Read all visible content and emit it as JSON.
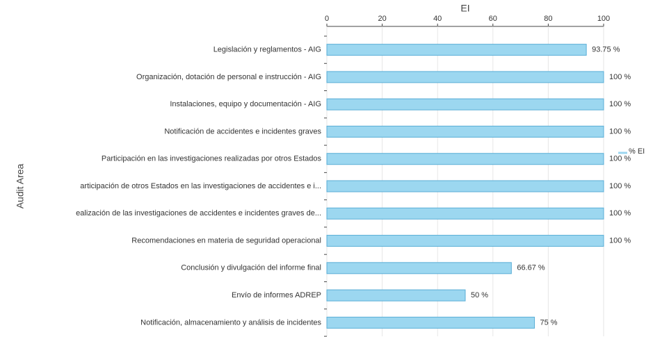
{
  "chart_data": {
    "type": "bar",
    "orientation": "horizontal",
    "x_label": "EI",
    "y_label": "Audit Area",
    "categories": [
      "Legislación y reglamentos - AIG",
      "Organización, dotación de personal e instrucción - AIG",
      "Instalaciones, equipo y documentación - AIG",
      "Notificación de accidentes e incidentes graves",
      "Participación en las investigaciones realizadas por otros Estados",
      "articipación de otros Estados en las investigaciones de accidentes e i...",
      "ealización de las investigaciones de accidentes e incidentes graves de...",
      "Recomendaciones en materia de seguridad operacional",
      "Conclusión y divulgación del informe final",
      "Envío de informes ADREP",
      "Notificación, almacenamiento y análisis de incidentes"
    ],
    "series": [
      {
        "name": "% EI",
        "color": "#9cd7f0",
        "values": [
          93.75,
          100,
          100,
          100,
          100,
          100,
          100,
          100,
          66.67,
          50,
          75
        ],
        "value_labels": [
          "93.75 %",
          "100 %",
          "100 %",
          "100 %",
          "100 %",
          "100 %",
          "100 %",
          "100 %",
          "66.67 %",
          "50 %",
          "75 %"
        ]
      }
    ],
    "xlim": [
      0,
      100
    ],
    "xticks": [
      0,
      20,
      40,
      60,
      80,
      100
    ],
    "grid": true,
    "legend": "right"
  }
}
